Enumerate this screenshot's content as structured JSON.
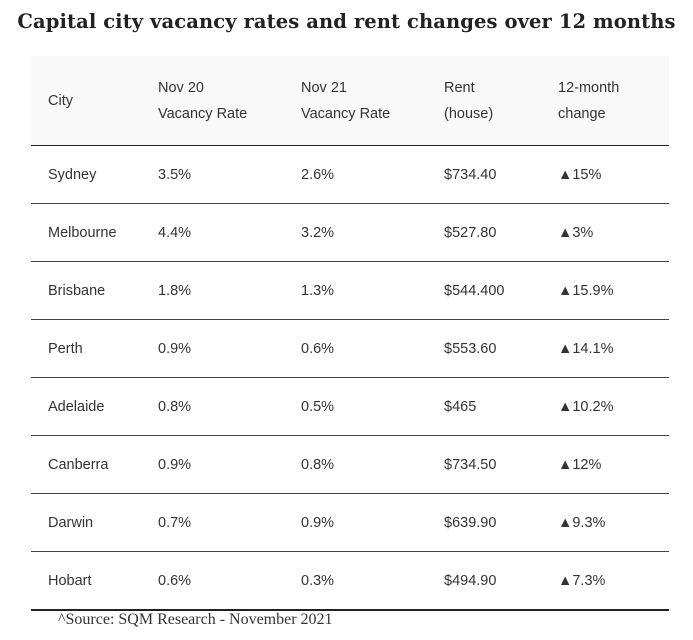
{
  "title": "Capital city vacancy rates and rent changes over 12 months",
  "table": {
    "headers": {
      "city": "City",
      "nov20_line1": "Nov 20",
      "nov20_line2": "Vacancy Rate",
      "nov21_line1": "Nov 21",
      "nov21_line2": "Vacancy Rate",
      "rent_line1": "Rent",
      "rent_line2": "(house)",
      "change_line1": "12-month",
      "change_line2": "change"
    },
    "rows": [
      {
        "city": "Sydney",
        "nov20": "3.5%",
        "nov21": "2.6%",
        "rent": "$734.40",
        "change": "▲15%"
      },
      {
        "city": "Melbourne",
        "nov20": "4.4%",
        "nov21": "3.2%",
        "rent": "$527.80",
        "change": "▲3%"
      },
      {
        "city": "Brisbane",
        "nov20": "1.8%",
        "nov21": "1.3%",
        "rent": "$544.400",
        "change": "▲15.9%"
      },
      {
        "city": "Perth",
        "nov20": "0.9%",
        "nov21": "0.6%",
        "rent": "$553.60",
        "change": "▲14.1%"
      },
      {
        "city": "Adelaide",
        "nov20": "0.8%",
        "nov21": "0.5%",
        "rent": "$465",
        "change": "▲10.2%"
      },
      {
        "city": "Canberra",
        "nov20": "0.9%",
        "nov21": "0.8%",
        "rent": "$734.50",
        "change": "▲12%"
      },
      {
        "city": "Darwin",
        "nov20": "0.7%",
        "nov21": "0.9%",
        "rent": "$639.90",
        "change": "▲9.3%"
      },
      {
        "city": "Hobart",
        "nov20": "0.6%",
        "nov21": "0.3%",
        "rent": "$494.90",
        "change": "▲7.3%"
      }
    ]
  },
  "source": "^Source: SQM Research - November 2021"
}
